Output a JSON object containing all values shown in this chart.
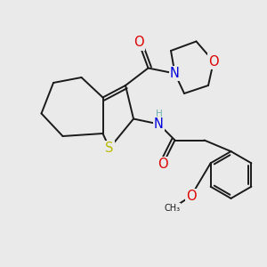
{
  "background_color": "#eaeaea",
  "bond_color": "#1a1a1a",
  "bond_width": 1.4,
  "atom_colors": {
    "C": "#1a1a1a",
    "N": "#0000dd",
    "O": "#dd0000",
    "S": "#bbbb00",
    "H": "#70b0b0"
  },
  "font_size": 8.5,
  "fig_width": 3.0,
  "fig_height": 3.0,
  "dpi": 100
}
